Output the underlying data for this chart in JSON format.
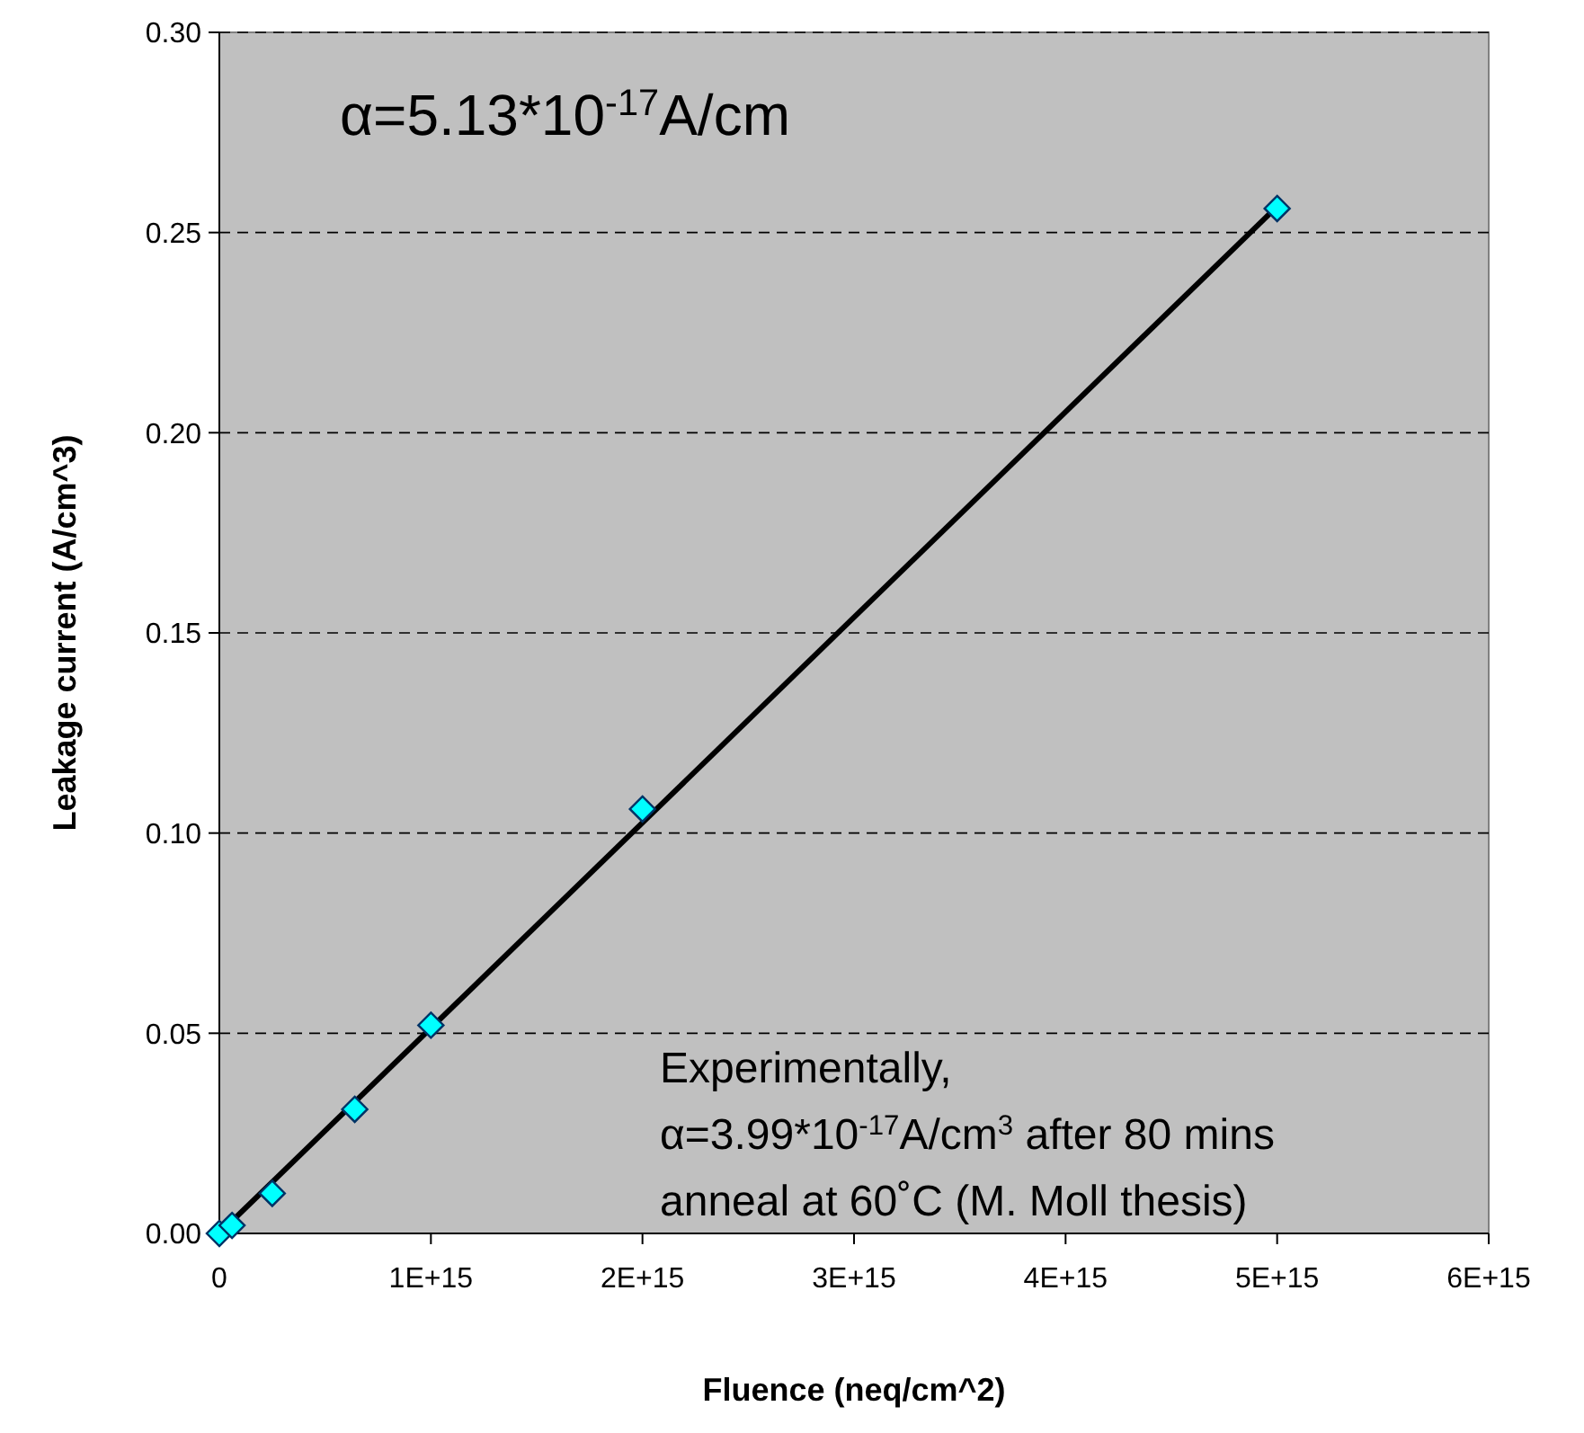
{
  "chart_data": {
    "type": "scatter",
    "xlabel": "Fluence (neq/cm^2)",
    "ylabel": "Leakage current (A/cm^3)",
    "xlim": [
      0,
      6000000000000000.0
    ],
    "xticks": [
      0,
      {
        "value": 1000000000000000.0,
        "label": "1E+15"
      },
      {
        "value": 2000000000000000.0,
        "label": "2E+15"
      },
      {
        "value": 3000000000000000.0,
        "label": "3E+15"
      },
      {
        "value": 4000000000000000.0,
        "label": "4E+15"
      },
      {
        "value": 5000000000000000.0,
        "label": "5E+15"
      },
      {
        "value": 6000000000000000.0,
        "label": "6E+15"
      }
    ],
    "ylim": [
      0,
      0.3
    ],
    "yticks": [
      {
        "value": 0,
        "label": "0.00"
      },
      {
        "value": 0.05,
        "label": "0.05"
      },
      {
        "value": 0.1,
        "label": "0.10"
      },
      {
        "value": 0.15,
        "label": "0.15"
      },
      {
        "value": 0.2,
        "label": "0.20"
      },
      {
        "value": 0.25,
        "label": "0.25"
      },
      {
        "value": 0.3,
        "label": "0.30"
      }
    ],
    "grid": "y",
    "marker": "diamond",
    "series": [
      {
        "type": "line",
        "color": "#000000",
        "marker": "none",
        "line_style": "solid",
        "x": [
          0,
          5000000000000000.0
        ],
        "values": [
          0,
          0.2565
        ]
      },
      {
        "color": "#00ffff",
        "x": [
          0,
          60000000000000.0,
          250000000000000.0,
          640000000000000.0,
          1000000000000000.0,
          2000000000000000.0,
          5000000000000000.0
        ],
        "values": [
          0,
          0.002,
          0.01,
          0.031,
          0.052,
          0.106,
          0.256
        ]
      }
    ],
    "annotations": [
      "α=5.13*10$^{-17}$A/cm",
      "Experimentally,\nα=3.99*10$^{-17}$A/cm$^{3}$ after 80 mins\nanneal at 60˚C (M. Moll thesis)"
    ]
  }
}
